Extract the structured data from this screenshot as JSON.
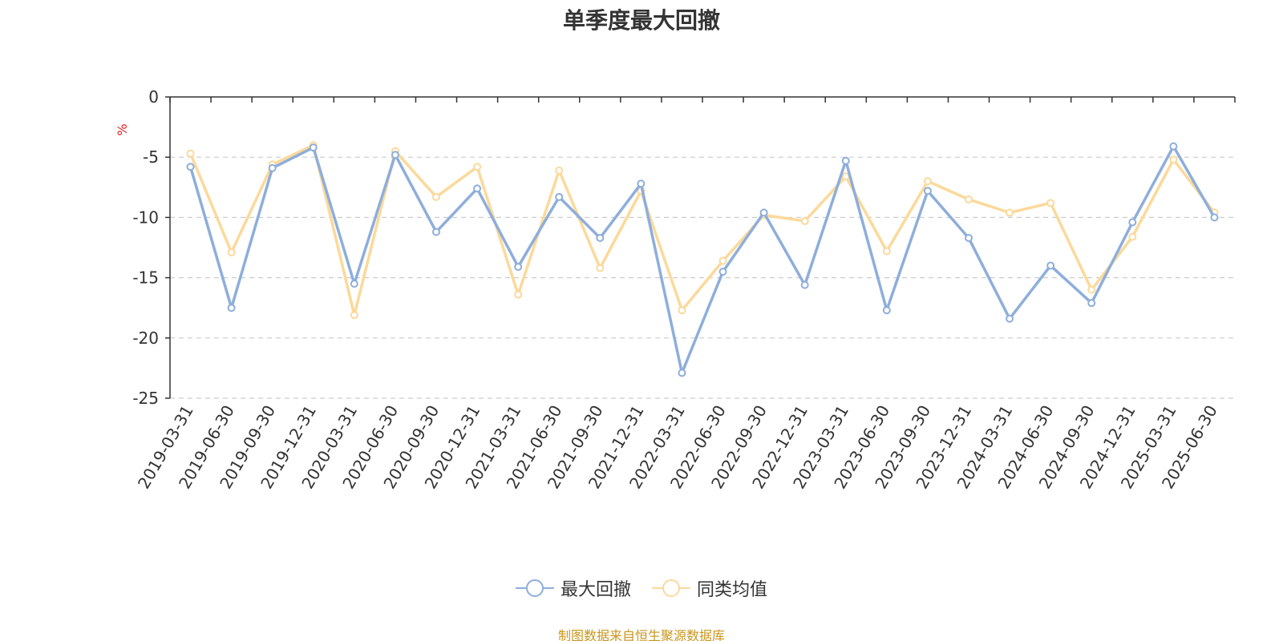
{
  "title": "单季度最大回撤",
  "source_note": "制图数据来自恒生聚源数据库",
  "chart_data": {
    "type": "line",
    "title": "单季度最大回撤",
    "ylabel": "%",
    "xlabel": "",
    "ylim": [
      -25,
      0
    ],
    "yticks": [
      0,
      -5,
      -10,
      -15,
      -20,
      -25
    ],
    "grid": true,
    "legend_position": "bottom",
    "categories": [
      "2019-03-31",
      "2019-06-30",
      "2019-09-30",
      "2019-12-31",
      "2020-03-31",
      "2020-06-30",
      "2020-09-30",
      "2020-12-31",
      "2021-03-31",
      "2021-06-30",
      "2021-09-30",
      "2021-12-31",
      "2022-03-31",
      "2022-06-30",
      "2022-09-30",
      "2022-12-31",
      "2023-03-31",
      "2023-06-30",
      "2023-09-30",
      "2023-12-31",
      "2024-03-31",
      "2024-06-30",
      "2024-09-30",
      "2024-12-31",
      "2025-03-31",
      "2025-06-30"
    ],
    "series": [
      {
        "name": "最大回撤",
        "color": "#8eaedb",
        "values": [
          -5.8,
          -17.5,
          -5.9,
          -4.2,
          -15.5,
          -4.8,
          -11.2,
          -7.6,
          -14.1,
          -8.3,
          -11.7,
          -7.2,
          -22.9,
          -14.5,
          -9.6,
          -15.6,
          -5.3,
          -17.7,
          -7.8,
          -11.7,
          -18.4,
          -14.0,
          -17.1,
          -10.4,
          -4.1,
          -10.0
        ]
      },
      {
        "name": "同类均值",
        "color": "#fcd99a",
        "values": [
          -4.7,
          -12.9,
          -5.6,
          -4.0,
          -18.1,
          -4.5,
          -8.3,
          -5.8,
          -16.4,
          -6.1,
          -14.2,
          -7.8,
          -17.7,
          -13.6,
          -9.8,
          -10.3,
          -6.6,
          -12.8,
          -7.0,
          -8.5,
          -9.6,
          -8.8,
          -16.0,
          -11.6,
          -5.2,
          -9.6
        ]
      }
    ]
  }
}
